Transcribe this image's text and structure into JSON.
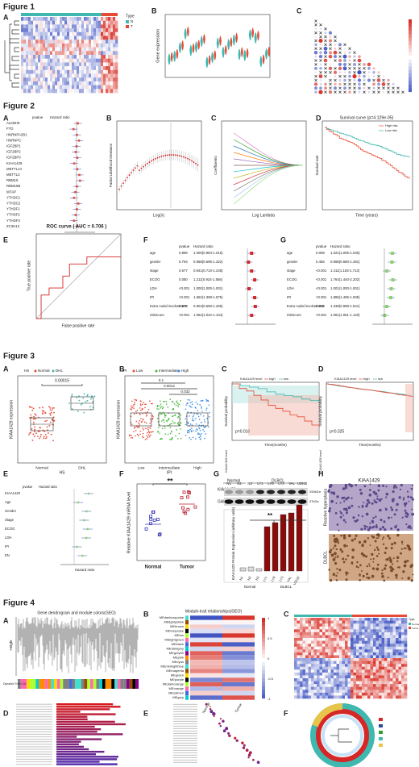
{
  "fig1": {
    "title": "Figure 1",
    "panels": [
      "A",
      "B",
      "C"
    ],
    "legend_title": "Type",
    "legend": [
      "N",
      "T"
    ],
    "b_ylabel": "Gene expression"
  },
  "fig2": {
    "title": "Figure 2",
    "panels": [
      "A",
      "B",
      "C",
      "D",
      "E",
      "F",
      "G"
    ],
    "a": {
      "headers": [
        "pvalue",
        "Hazard ratio"
      ],
      "genes": [
        "ALKBH5",
        "FTO",
        "HNRNPA2B1",
        "HNRNPC",
        "IGF2BP1",
        "IGF2BP2",
        "IGF2BP3",
        "KIAA1429",
        "METTL14",
        "METTL3",
        "RBM15",
        "RBM15B",
        "WTAP",
        "YTHDC1",
        "YTHDC2",
        "YTHDF1",
        "YTHDF2",
        "YTHDF3",
        "ZC3H13"
      ]
    },
    "b": {
      "xlabel": "Log(λ)",
      "ylabel": "Partial Likelihood Deviance"
    },
    "c": {
      "xlabel": "Log Lambda",
      "ylabel": "Coefficients"
    },
    "d": {
      "title": "Survival curve (p=4.129e-05)",
      "legend": [
        "High risk",
        "Low risk"
      ],
      "xlabel": "Time (years)",
      "ylabel": "Survival rate"
    },
    "e": {
      "title": "ROC curve ( AUC = 0.706 )",
      "xlabel": "False positive rate",
      "ylabel": "True positive rate"
    },
    "f": {
      "headers": [
        "pvalue",
        "Hazard ratio"
      ],
      "rows": [
        {
          "name": "age",
          "p": "0.896",
          "hr": "1.000(0.984-1.016)"
        },
        {
          "name": "gender",
          "p": "0.794",
          "hr": "0.958(0.695-1.322)"
        },
        {
          "name": "stage",
          "p": "0.677",
          "hr": "0.941(0.710-1.248)"
        },
        {
          "name": "ECOG",
          "p": "0.080",
          "hr": "1.211(0.924-1.556)"
        },
        {
          "name": "LDH",
          "p": "<0.001",
          "hr": "1.000(1.000-1.001)"
        },
        {
          "name": "IPI",
          "p": "<0.001",
          "hr": "1.562(1.308-1.875)"
        },
        {
          "name": "Extra nodal involvement",
          "p": "0.570",
          "hr": "0.904(0.659-1.265)"
        },
        {
          "name": "riskScore",
          "p": "<0.001",
          "hr": "1.062(1.042-1.104)"
        }
      ]
    },
    "g": {
      "headers": [
        "pvalue",
        "Hazard ratio"
      ],
      "rows": [
        {
          "name": "age",
          "p": "0.008",
          "hr": "1.021(1.006-1.036)"
        },
        {
          "name": "gender",
          "p": "0.456",
          "hr": "0.898(0.680-1.281)"
        },
        {
          "name": "stage",
          "p": "<0.001",
          "hr": "1.411(1.183-1.713)"
        },
        {
          "name": "ECOG",
          "p": "<0.001",
          "hr": "1.764(1.440-2.202)"
        },
        {
          "name": "LDH",
          "p": "<0.001",
          "hr": "1.001(1.000-1.001)"
        },
        {
          "name": "IPI",
          "p": "<0.001",
          "hr": "1.886(1.495-1.935)"
        },
        {
          "name": "Extra nodal involvement",
          "p": "0.068",
          "hr": "1.338(0.998-1.841)"
        },
        {
          "name": "riskScore",
          "p": "<0.001",
          "hr": "1.081(1.051-1.120)"
        }
      ]
    }
  },
  "fig3": {
    "title": "Figure 3",
    "panels": [
      "A",
      "B",
      "C",
      "D",
      "E",
      "F",
      "G",
      "H"
    ],
    "a": {
      "legend_title": "HS",
      "legend": [
        "Normal",
        "DHL"
      ],
      "p": "0.00015",
      "ylabel": "KIAA1429 expression",
      "xlabel": "HS",
      "categories": [
        "Normal",
        "DHL"
      ]
    },
    "b": {
      "legend_title": "IPI",
      "legend": [
        "Low",
        "Intermediate",
        "High"
      ],
      "p": [
        "0.1",
        "0.0012",
        "0.032"
      ],
      "ylabel": "KIAA1429 expression",
      "xlabel": "IPI",
      "categories": [
        "Low",
        "Intermediate",
        "High"
      ]
    },
    "c": {
      "legend_title": "KIAA1429 level",
      "legend": [
        "high",
        "low"
      ],
      "p": "p=0.018",
      "ylabel": "Survival probability",
      "xlabel": "Time(months)",
      "table_label": "KIAA1429 level"
    },
    "d": {
      "legend_title": "KIAA1429 level",
      "legend": [
        "high",
        "low"
      ],
      "p": "p=0.325",
      "ylabel": "Survival probability",
      "xlabel": "Time(months)",
      "table_label": "KIAA1429 level"
    },
    "e": {
      "headers": [
        "pvalue",
        "Hazard ratio"
      ],
      "rows": [
        "KIAA1429",
        "Age",
        "Gender",
        "Stage",
        "ECOG",
        "LDH",
        "IPI",
        "EN"
      ],
      "xlabel": "Hazard ratio"
    },
    "f": {
      "sig": "**",
      "ylabel": "Relative KIAA1429 mRNA level",
      "categories": [
        "Normal",
        "Tumor"
      ]
    },
    "g": {
      "groups": [
        "Normal",
        "DLBCL"
      ],
      "lanes": [
        "N1",
        "N2",
        "N3",
        "LY1",
        "LY8",
        "LY3",
        "VAL",
        "U2932"
      ],
      "proteins": [
        "KIAA1429",
        "GAPDH"
      ],
      "sizes": [
        "250kDa",
        "37kDa"
      ],
      "sig": "**",
      "ylabel": "KIAA1429 Protein Expression (arbitrary units)"
    },
    "h": {
      "title": "KIAA1429",
      "rows": [
        "Reactive hyperplasia",
        "DLBCL"
      ]
    }
  },
  "fig4": {
    "title": "Figure 4",
    "panels": [
      "A",
      "B",
      "C",
      "D",
      "E",
      "F"
    ],
    "a": {
      "title": "Gene dendrogram and module colors(GEO)",
      "ylabel": "Height",
      "track": "Dynamic Tree Cut"
    },
    "b": {
      "title": "Module-trait relationships(GEO)",
      "modules": [
        "MEdarkturquoise",
        "MElightyellow",
        "MEbrown",
        "MEturquoise",
        "MEtan",
        "MElightgreen",
        "MEblack",
        "MEdarkgrey",
        "MEgrey60",
        "MEpink",
        "MEcyan",
        "MEmidnightblue",
        "MEmagenta",
        "MEgreen",
        "MEpurple",
        "MEdarkorange",
        "MEorange",
        "MEsalmon",
        "MEgrey"
      ],
      "traits": [
        "Normal",
        "Tumor"
      ],
      "scale": [
        1,
        0.5,
        0,
        -0.5,
        -1
      ]
    },
    "c": {
      "legend_title": "Type",
      "legend": [
        "Normal",
        "Tumor"
      ]
    }
  }
}
